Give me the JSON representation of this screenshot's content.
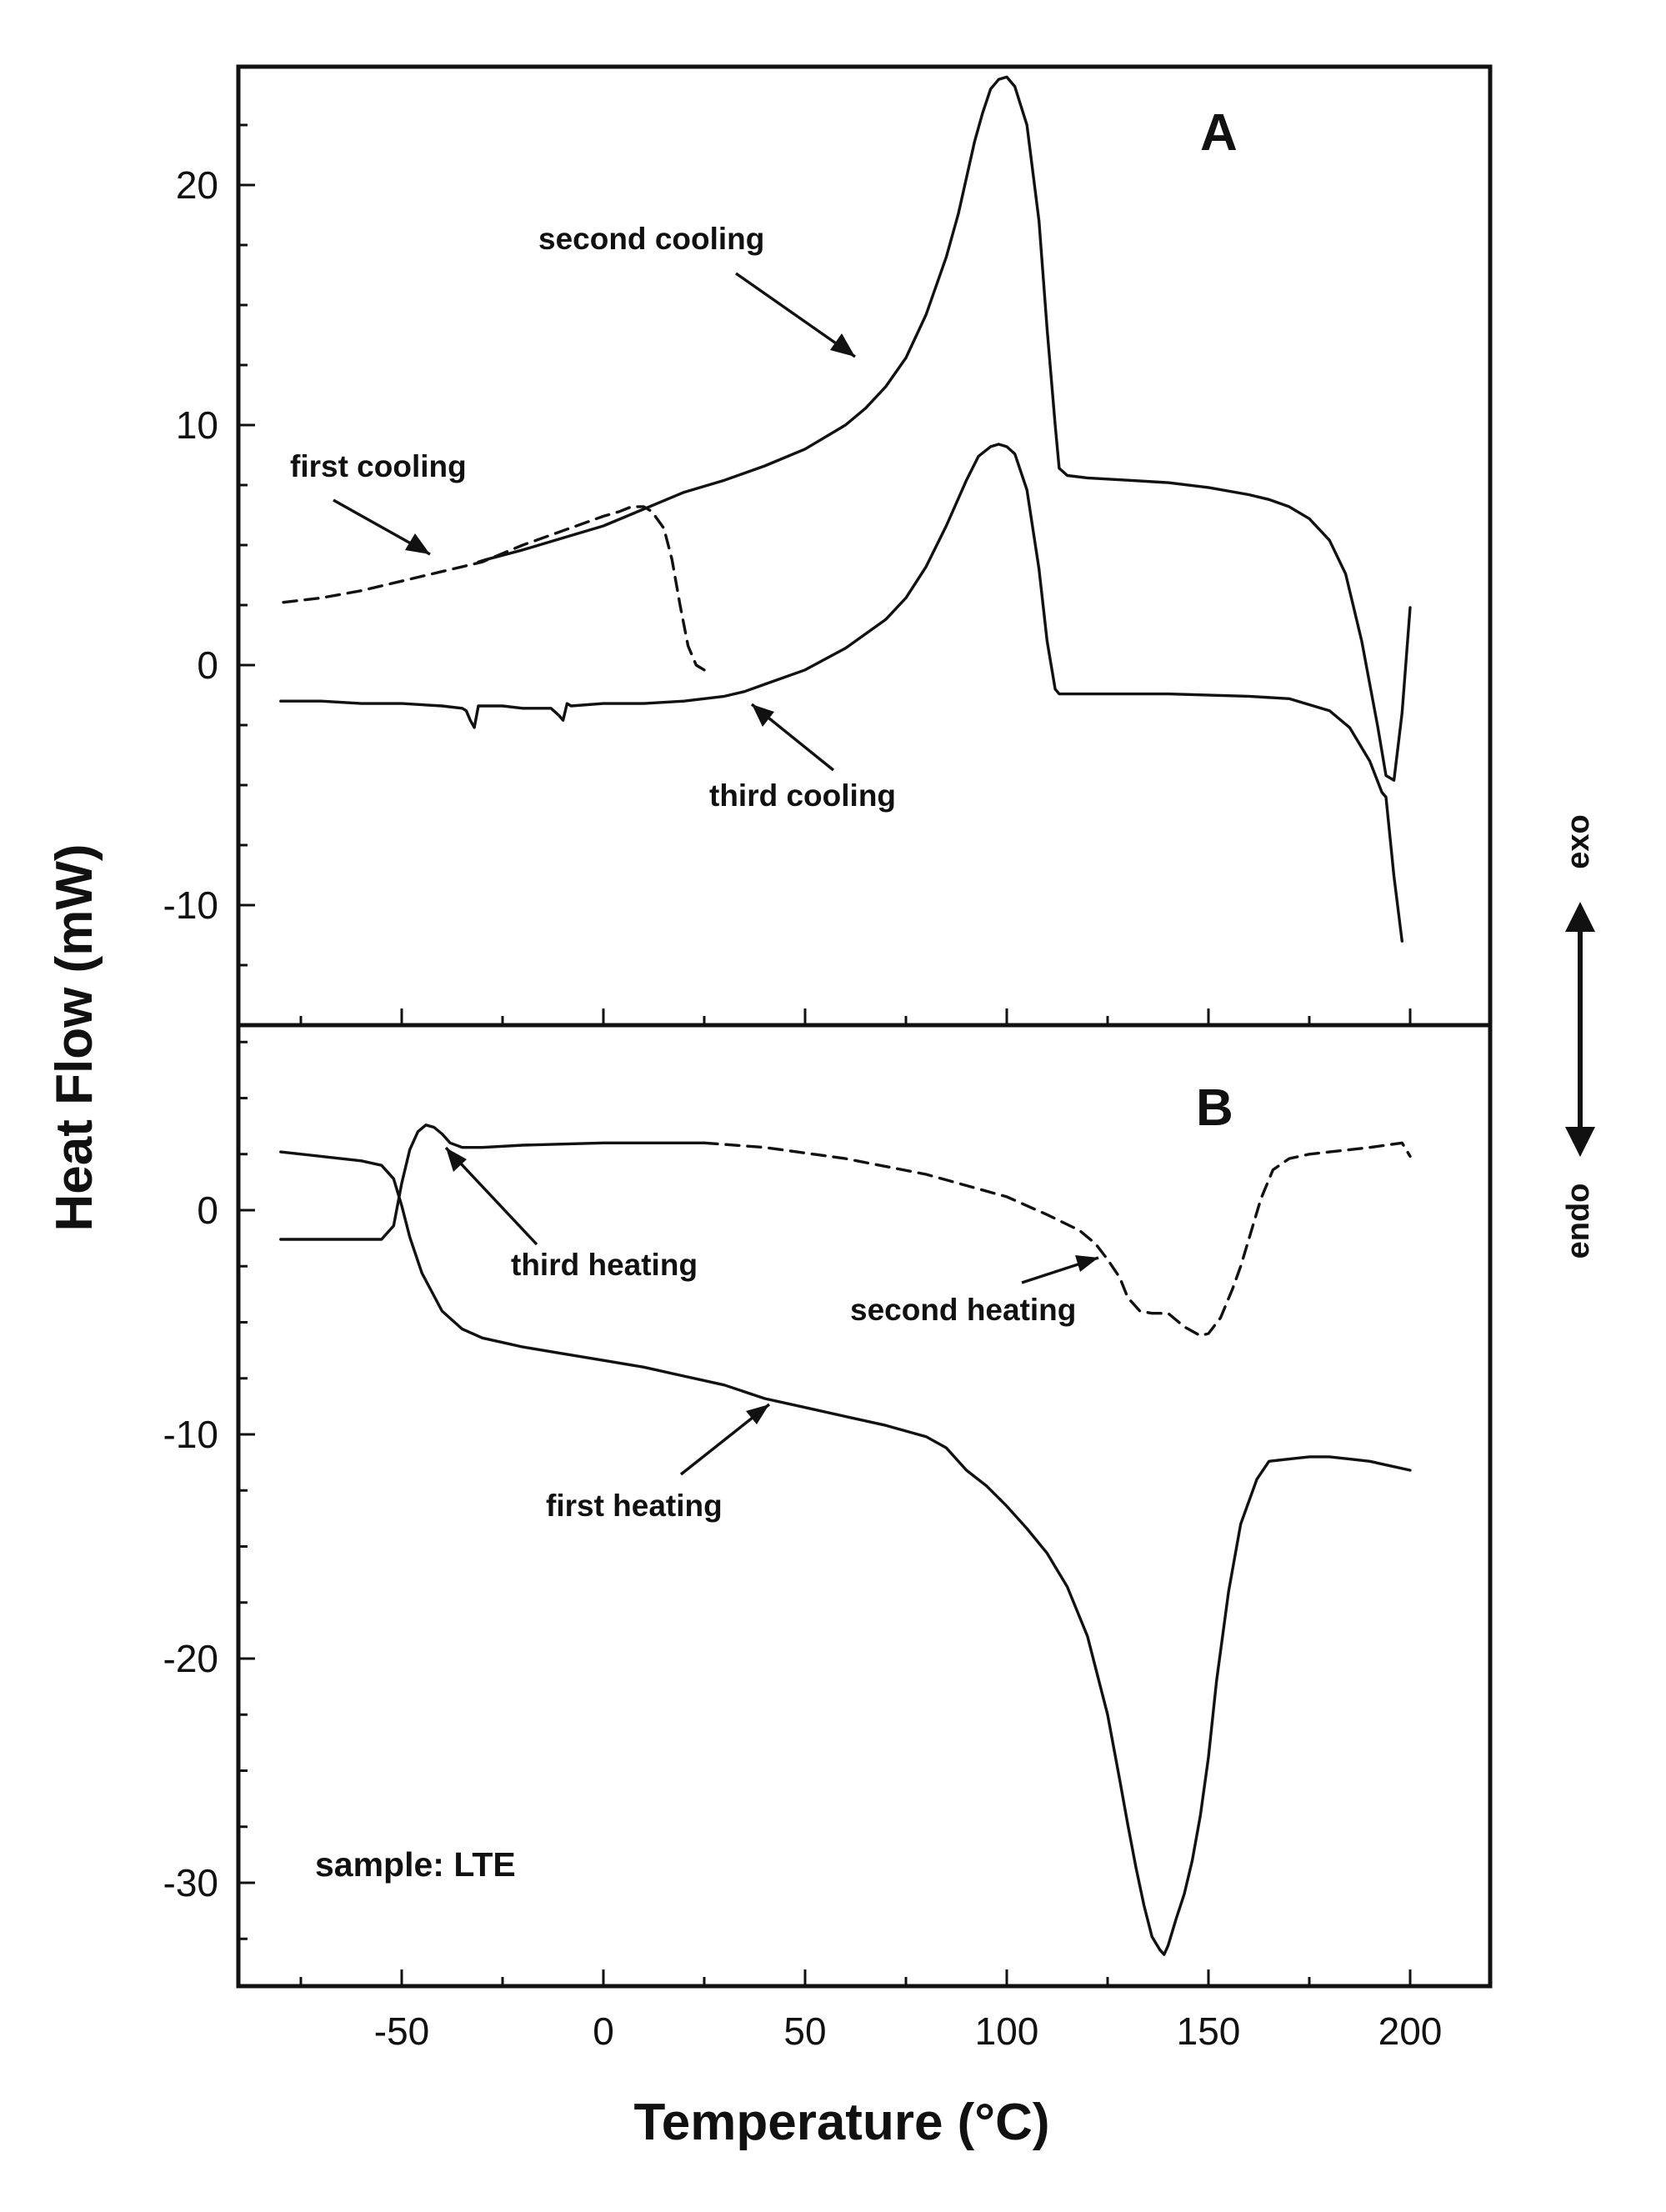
{
  "chart_data": [
    {
      "panel": "A",
      "type": "line",
      "panel_label": "A",
      "xlim": [
        -90,
        220
      ],
      "ylim": [
        -15,
        25
      ],
      "xticks": [
        -50,
        0,
        50,
        100,
        150,
        200
      ],
      "yticks": [
        -10,
        0,
        10,
        20
      ],
      "ytick_labels": [
        "-10",
        "0",
        "10",
        "20"
      ],
      "series": [
        {
          "name": "second cooling",
          "style": "solid",
          "x": [
            200,
            198,
            196,
            194,
            192,
            188,
            184,
            180,
            175,
            170,
            165,
            160,
            150,
            140,
            130,
            120,
            115,
            113,
            112,
            110,
            108,
            105,
            102,
            100,
            98,
            96,
            94,
            92,
            90,
            88,
            85,
            80,
            75,
            70,
            65,
            60,
            55,
            50,
            40,
            30,
            20,
            10,
            0,
            -10,
            -20,
            -29,
            -31
          ],
          "y": [
            2.4,
            -2.0,
            -4.8,
            -4.6,
            -2.6,
            1.0,
            3.8,
            5.2,
            6.1,
            6.6,
            6.9,
            7.1,
            7.4,
            7.6,
            7.7,
            7.8,
            7.9,
            8.2,
            10.0,
            14.0,
            18.5,
            22.5,
            24.1,
            24.5,
            24.4,
            24.0,
            23.0,
            21.8,
            20.3,
            18.8,
            17.0,
            14.6,
            12.8,
            11.6,
            10.7,
            10.0,
            9.5,
            9.0,
            8.3,
            7.7,
            7.2,
            6.5,
            5.8,
            5.3,
            4.8,
            4.4,
            4.3
          ]
        },
        {
          "name": "first cooling",
          "style": "dashed",
          "x": [
            25,
            23,
            21,
            19,
            17,
            15,
            12,
            10,
            7,
            4,
            0,
            -10,
            -20,
            -30,
            -40,
            -50,
            -60,
            -70,
            -80
          ],
          "y": [
            -0.2,
            0.0,
            0.8,
            2.5,
            4.4,
            5.7,
            6.4,
            6.6,
            6.6,
            6.4,
            6.2,
            5.6,
            5.0,
            4.3,
            3.9,
            3.5,
            3.1,
            2.8,
            2.6
          ]
        },
        {
          "name": "third cooling",
          "style": "solid",
          "x": [
            198,
            196,
            194,
            193,
            190,
            185,
            180,
            170,
            160,
            140,
            120,
            113,
            112,
            110,
            108,
            105,
            102,
            100,
            98,
            96,
            93,
            90,
            85,
            80,
            75,
            70,
            60,
            50,
            40,
            35,
            30,
            20,
            10,
            0,
            -8,
            -9,
            -10,
            -11,
            -13,
            -20,
            -25,
            -30,
            -31,
            -32,
            -33,
            -34,
            -35,
            -40,
            -50,
            -60,
            -70,
            -80
          ],
          "y": [
            -11.5,
            -8.8,
            -5.5,
            -5.3,
            -4.0,
            -2.6,
            -1.9,
            -1.4,
            -1.3,
            -1.2,
            -1.2,
            -1.2,
            -1.0,
            1.0,
            4.0,
            7.3,
            8.8,
            9.1,
            9.2,
            9.1,
            8.7,
            7.7,
            5.8,
            4.1,
            2.8,
            1.9,
            0.7,
            -0.2,
            -0.8,
            -1.1,
            -1.3,
            -1.5,
            -1.6,
            -1.6,
            -1.7,
            -1.6,
            -2.3,
            -2.1,
            -1.8,
            -1.8,
            -1.7,
            -1.7,
            -1.7,
            -2.6,
            -2.3,
            -1.9,
            -1.8,
            -1.7,
            -1.6,
            -1.6,
            -1.5,
            -1.5
          ]
        }
      ],
      "annotations": [
        "second cooling",
        "first cooling",
        "third cooling"
      ]
    },
    {
      "panel": "B",
      "type": "line",
      "panel_label": "B",
      "xlim": [
        -90,
        220
      ],
      "ylim": [
        -35,
        8
      ],
      "xticks": [
        -50,
        0,
        50,
        100,
        150,
        200
      ],
      "yticks": [
        -30,
        -20,
        -10,
        0
      ],
      "ytick_labels": [
        "-30",
        "-20",
        "-10",
        "0"
      ],
      "xtick_labels": [
        "-50",
        "0",
        "50",
        "100",
        "150",
        "200"
      ],
      "series": [
        {
          "name": "first heating",
          "style": "solid",
          "x": [
            -80,
            -70,
            -60,
            -55,
            -52,
            -50,
            -48,
            -45,
            -40,
            -35,
            -30,
            -25,
            -20,
            -10,
            0,
            10,
            20,
            30,
            40,
            50,
            60,
            70,
            80,
            85,
            88,
            90,
            95,
            100,
            105,
            110,
            115,
            120,
            125,
            128,
            130,
            132,
            134,
            136,
            138,
            139,
            140,
            142,
            144,
            146,
            148,
            150,
            152,
            155,
            158,
            162,
            165,
            170,
            175,
            180,
            185,
            190,
            195,
            200
          ],
          "y": [
            2.6,
            2.4,
            2.2,
            2.0,
            1.4,
            0.2,
            -1.2,
            -2.8,
            -4.5,
            -5.3,
            -5.7,
            -5.9,
            -6.1,
            -6.4,
            -6.7,
            -7.0,
            -7.4,
            -7.8,
            -8.4,
            -8.8,
            -9.2,
            -9.6,
            -10.1,
            -10.6,
            -11.2,
            -11.6,
            -12.3,
            -13.2,
            -14.2,
            -15.3,
            -16.8,
            -19.0,
            -22.5,
            -25.4,
            -27.4,
            -29.3,
            -31.0,
            -32.4,
            -33.0,
            -33.2,
            -32.8,
            -31.6,
            -30.5,
            -29.0,
            -27.0,
            -24.4,
            -21.0,
            -17.0,
            -14.0,
            -12.0,
            -11.2,
            -11.1,
            -11.0,
            -11.0,
            -11.1,
            -11.2,
            -11.4,
            -11.6
          ]
        },
        {
          "name": "third heating",
          "style": "solid",
          "x": [
            -80,
            -70,
            -60,
            -55,
            -52,
            -50,
            -48,
            -46,
            -44,
            -42,
            -40,
            -38,
            -35,
            -30,
            -20,
            0,
            10,
            25
          ],
          "y": [
            -1.3,
            -1.3,
            -1.3,
            -1.3,
            -0.7,
            1.2,
            2.7,
            3.5,
            3.8,
            3.7,
            3.4,
            3.0,
            2.8,
            2.8,
            2.9,
            3.0,
            3.0,
            3.0
          ]
        },
        {
          "name": "second heating",
          "style": "dashed",
          "x": [
            25,
            40,
            60,
            80,
            100,
            110,
            118,
            122,
            125,
            128,
            130,
            133,
            136,
            140,
            144,
            148,
            150,
            153,
            156,
            158,
            160,
            163,
            166,
            170,
            175,
            180,
            190,
            198,
            200
          ],
          "y": [
            3.0,
            2.8,
            2.3,
            1.6,
            0.6,
            -0.2,
            -0.9,
            -1.5,
            -2.2,
            -3.0,
            -3.9,
            -4.5,
            -4.6,
            -4.6,
            -5.2,
            -5.6,
            -5.5,
            -4.8,
            -3.5,
            -2.5,
            -1.3,
            0.5,
            1.8,
            2.3,
            2.5,
            2.6,
            2.8,
            3.0,
            2.4
          ]
        }
      ],
      "annotations": [
        "third heating",
        "second heating",
        "first heating",
        "sample: LTE"
      ]
    }
  ],
  "figure": {
    "ylabel": "Heat Flow (mW)",
    "xlabel": "Temperature (°C)",
    "exo_label": "exo",
    "endo_label": "endo"
  }
}
